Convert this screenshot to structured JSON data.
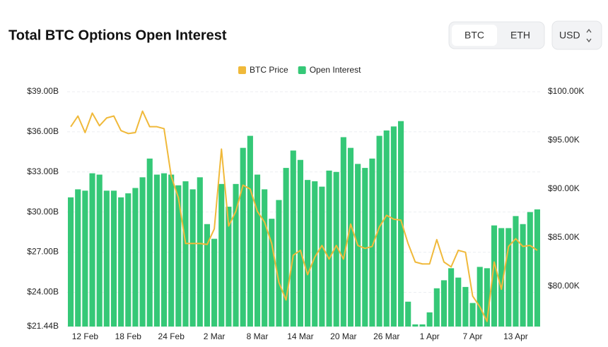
{
  "controls": {
    "assets": [
      "BTC",
      "ETH"
    ],
    "currency": "USD"
  },
  "chart_data": {
    "type": "bar-line",
    "title": "Total BTC Options Open Interest",
    "categories": [
      null,
      null,
      "12 Feb",
      null,
      null,
      null,
      null,
      null,
      "18 Feb",
      null,
      null,
      null,
      null,
      null,
      "24 Feb",
      null,
      null,
      null,
      null,
      null,
      "2 Mar",
      null,
      null,
      null,
      null,
      null,
      "8 Mar",
      null,
      null,
      null,
      null,
      null,
      "14 Mar",
      null,
      null,
      null,
      null,
      null,
      "20 Mar",
      null,
      null,
      null,
      null,
      null,
      "26 Mar",
      null,
      null,
      null,
      null,
      null,
      "1 Apr",
      null,
      null,
      null,
      null,
      null,
      "7 Apr",
      null,
      null,
      null,
      null,
      null,
      "13 Apr",
      null,
      null,
      null
    ],
    "series": [
      {
        "name": "BTC Price",
        "color": "#f0b93a",
        "axis": "y2",
        "kind": "line",
        "values": [
          96.4,
          97.5,
          95.8,
          97.8,
          96.5,
          97.3,
          97.5,
          96.0,
          95.7,
          95.8,
          98.0,
          96.4,
          96.4,
          96.2,
          91.3,
          89.1,
          84.4,
          84.4,
          84.4,
          84.3,
          85.9,
          94.1,
          86.2,
          87.7,
          90.4,
          90.0,
          87.7,
          86.6,
          84.4,
          80.4,
          78.6,
          83.2,
          83.7,
          81.2,
          83.0,
          84.2,
          82.8,
          84.2,
          82.8,
          86.4,
          84.2,
          83.9,
          84.1,
          86.1,
          87.3,
          86.9,
          86.8,
          84.4,
          82.5,
          82.3,
          82.3,
          84.8,
          82.5,
          82.0,
          83.7,
          83.5,
          79.0,
          77.9,
          76.4,
          82.5,
          79.7,
          84.1,
          84.9,
          84.1,
          84.2,
          83.7
        ]
      },
      {
        "name": "Open Interest",
        "color": "#35c877",
        "kind": "bar",
        "values": [
          31.1,
          31.7,
          31.6,
          32.9,
          32.8,
          31.6,
          31.6,
          31.1,
          31.4,
          31.8,
          32.6,
          34.0,
          32.8,
          32.9,
          32.8,
          32.0,
          32.3,
          31.7,
          32.6,
          29.1,
          28.0,
          32.1,
          30.4,
          32.1,
          34.8,
          35.7,
          32.8,
          31.7,
          29.5,
          30.9,
          33.3,
          34.6,
          33.9,
          32.4,
          32.3,
          31.9,
          33.1,
          33.0,
          35.6,
          34.8,
          33.6,
          33.3,
          34.0,
          35.7,
          36.1,
          36.4,
          36.8,
          23.3,
          21.6,
          21.6,
          22.5,
          24.3,
          24.9,
          25.8,
          25.1,
          24.4,
          23.2,
          25.9,
          25.8,
          29.0,
          28.8,
          28.8,
          29.7,
          29.1,
          30.0,
          30.2
        ]
      }
    ],
    "ylim": [
      21.44,
      39.0
    ],
    "yticks": [
      {
        "value": 21.44,
        "label": "$21.44B"
      },
      {
        "value": 24,
        "label": "$24.00B"
      },
      {
        "value": 27,
        "label": "$27.00B"
      },
      {
        "value": 30,
        "label": "$30.00B"
      },
      {
        "value": 33,
        "label": "$33.00B"
      },
      {
        "value": 36,
        "label": "$36.00B"
      },
      {
        "value": 39,
        "label": "$39.00B"
      }
    ],
    "y2lim": [
      75.87,
      100
    ],
    "y2ticks": [
      {
        "value": 80,
        "label": "$80.00K"
      },
      {
        "value": 85,
        "label": "$85.00K"
      },
      {
        "value": 90,
        "label": "$90.00K"
      },
      {
        "value": 95,
        "label": "$95.00K"
      },
      {
        "value": 100,
        "label": "$100.00K"
      }
    ],
    "grid": true,
    "legend": "top"
  }
}
